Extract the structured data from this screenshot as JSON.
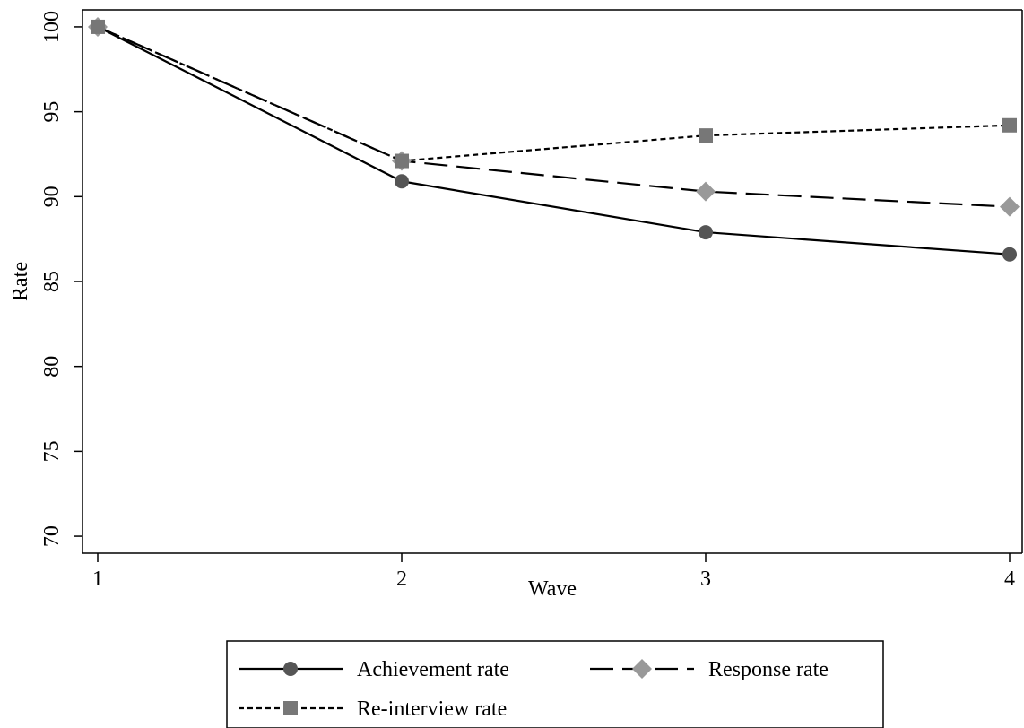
{
  "chart_data": {
    "type": "line",
    "title": "",
    "xlabel": "Wave",
    "ylabel": "Rate",
    "x": [
      1,
      2,
      3,
      4
    ],
    "xticks": [
      "1",
      "2",
      "3",
      "4"
    ],
    "yticks": [
      "70",
      "75",
      "80",
      "85",
      "90",
      "95",
      "100"
    ],
    "ylim": [
      69,
      101
    ],
    "grid": false,
    "legend_position": "bottom",
    "series": [
      {
        "name": "Achievement rate",
        "values": [
          100,
          90.9,
          87.9,
          86.6
        ],
        "color": "#555555",
        "marker": "circle",
        "dash": "solid"
      },
      {
        "name": "Response rate",
        "values": [
          100,
          92.1,
          90.3,
          89.4
        ],
        "color": "#999999",
        "marker": "diamond",
        "dash": "long-dash"
      },
      {
        "name": "Re-interview rate",
        "values": [
          100,
          92.1,
          93.6,
          94.2
        ],
        "color": "#777777",
        "marker": "square",
        "dash": "short-dash"
      }
    ]
  }
}
